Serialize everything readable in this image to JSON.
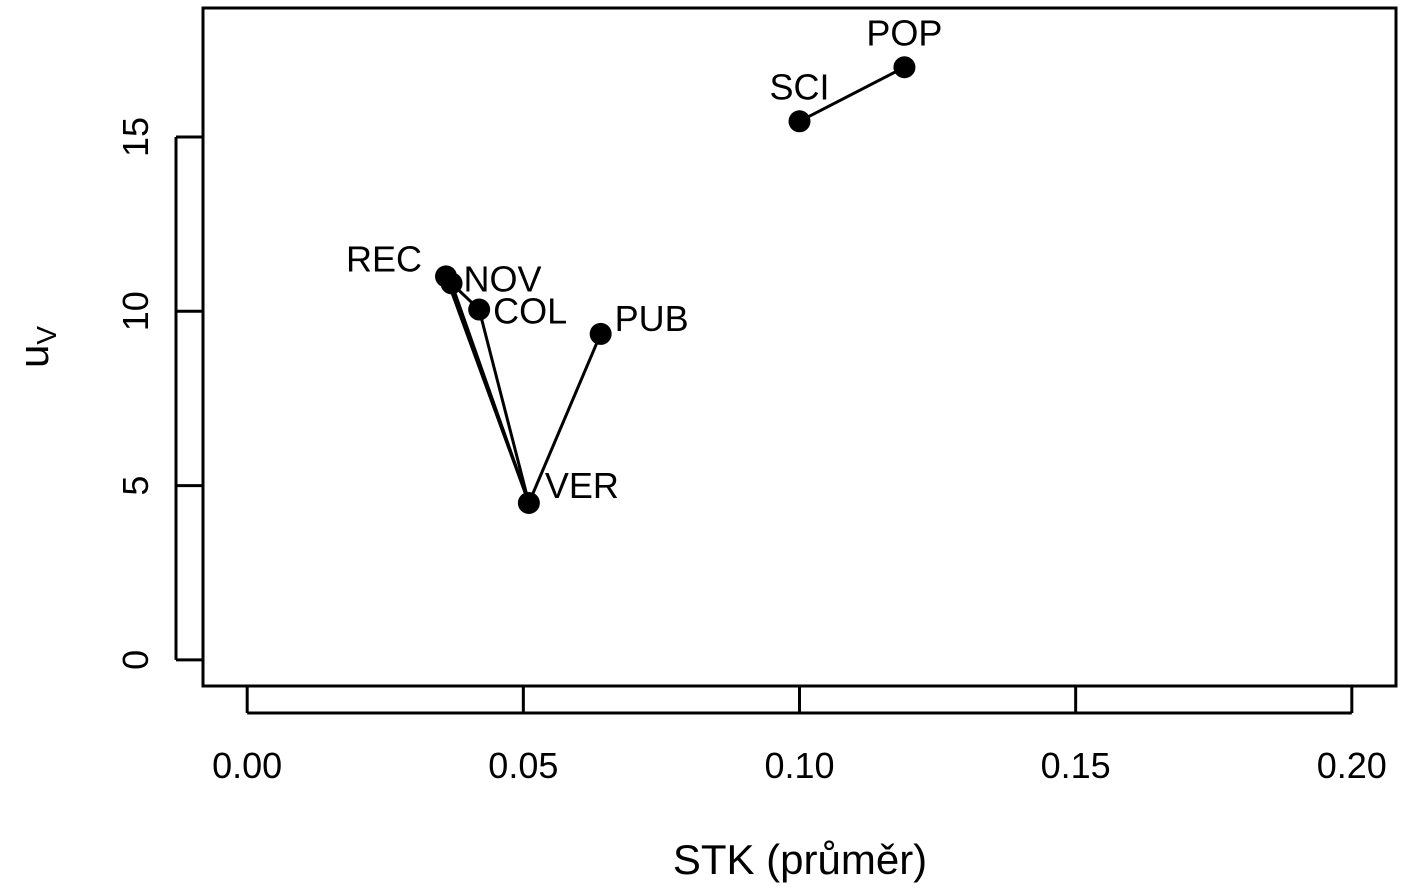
{
  "chart_data": {
    "type": "scatter",
    "title": "",
    "xlabel": "STK (průměr)",
    "ylabel_base": "u",
    "ylabel_sub": "V",
    "xlim": [
      -0.008,
      0.208
    ],
    "ylim": [
      -0.75,
      18.7
    ],
    "x_ticks": [
      "0.00",
      "0.05",
      "0.10",
      "0.15",
      "0.20"
    ],
    "y_ticks": [
      "0",
      "5",
      "10",
      "15"
    ],
    "grid": false,
    "points": [
      {
        "name": "REC",
        "x": 0.036,
        "y": 11.0
      },
      {
        "name": "NOV",
        "x": 0.037,
        "y": 10.8
      },
      {
        "name": "COL",
        "x": 0.042,
        "y": 10.05
      },
      {
        "name": "PUB",
        "x": 0.064,
        "y": 9.35
      },
      {
        "name": "VER",
        "x": 0.051,
        "y": 4.5
      },
      {
        "name": "SCI",
        "x": 0.1,
        "y": 15.45
      },
      {
        "name": "POP",
        "x": 0.119,
        "y": 17.0
      }
    ],
    "segments": [
      [
        "REC",
        "NOV"
      ],
      [
        "NOV",
        "COL"
      ],
      [
        "REC",
        "VER"
      ],
      [
        "NOV",
        "VER"
      ],
      [
        "COL",
        "VER"
      ],
      [
        "VER",
        "PUB"
      ],
      [
        "SCI",
        "POP"
      ]
    ]
  }
}
